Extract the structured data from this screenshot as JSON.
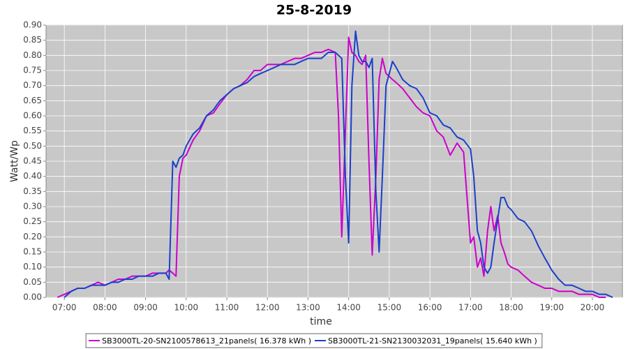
{
  "chart_data": {
    "type": "line",
    "title": "25-8-2019",
    "xlabel": "time",
    "ylabel": "Watt/Wp",
    "x": [
      6.83,
      7.0,
      7.17,
      7.33,
      7.5,
      7.67,
      7.83,
      8.0,
      8.17,
      8.33,
      8.5,
      8.67,
      8.83,
      9.0,
      9.17,
      9.33,
      9.5,
      9.58,
      9.67,
      9.75,
      9.83,
      9.92,
      10.0,
      10.17,
      10.33,
      10.5,
      10.67,
      10.83,
      11.0,
      11.17,
      11.33,
      11.5,
      11.67,
      11.83,
      12.0,
      12.17,
      12.33,
      12.5,
      12.67,
      12.83,
      13.0,
      13.17,
      13.33,
      13.5,
      13.67,
      13.75,
      13.83,
      13.92,
      14.0,
      14.08,
      14.17,
      14.25,
      14.33,
      14.42,
      14.5,
      14.58,
      14.67,
      14.75,
      14.83,
      14.92,
      15.0,
      15.08,
      15.17,
      15.33,
      15.5,
      15.67,
      15.83,
      16.0,
      16.17,
      16.33,
      16.5,
      16.67,
      16.83,
      17.0,
      17.08,
      17.17,
      17.25,
      17.33,
      17.42,
      17.5,
      17.58,
      17.67,
      17.75,
      17.83,
      17.92,
      18.0,
      18.17,
      18.33,
      18.5,
      18.67,
      18.83,
      19.0,
      19.17,
      19.33,
      19.5,
      19.67,
      19.83,
      20.0,
      20.17,
      20.33,
      20.5
    ],
    "series": [
      {
        "name": "SB3000TL-20-SN2100578613_21panels( 16.378 kWh )",
        "color": "#cc00cc",
        "values": [
          0.0,
          0.01,
          0.02,
          0.03,
          0.03,
          0.04,
          0.05,
          0.04,
          0.05,
          0.06,
          0.06,
          0.07,
          0.07,
          0.07,
          0.08,
          0.08,
          0.08,
          0.09,
          0.08,
          0.07,
          0.4,
          0.46,
          0.47,
          0.52,
          0.55,
          0.6,
          0.61,
          0.64,
          0.67,
          0.69,
          0.7,
          0.72,
          0.75,
          0.75,
          0.77,
          0.77,
          0.77,
          0.78,
          0.79,
          0.79,
          0.8,
          0.81,
          0.81,
          0.82,
          0.81,
          0.6,
          0.2,
          0.55,
          0.86,
          0.81,
          0.8,
          0.78,
          0.77,
          0.8,
          0.45,
          0.14,
          0.4,
          0.72,
          0.79,
          0.74,
          0.73,
          0.72,
          0.71,
          0.69,
          0.66,
          0.63,
          0.61,
          0.6,
          0.55,
          0.53,
          0.47,
          0.51,
          0.48,
          0.18,
          0.2,
          0.1,
          0.13,
          0.07,
          0.22,
          0.3,
          0.22,
          0.27,
          0.18,
          0.15,
          0.11,
          0.1,
          0.09,
          0.07,
          0.05,
          0.04,
          0.03,
          0.03,
          0.02,
          0.02,
          0.02,
          0.01,
          0.01,
          0.01,
          0.0,
          0.0,
          null
        ]
      },
      {
        "name": "SB3000TL-21-SN2130032031_19panels( 15.640 kWh )",
        "color": "#1a3fcc",
        "values": [
          null,
          0.0,
          0.02,
          0.03,
          0.03,
          0.04,
          0.04,
          0.04,
          0.05,
          0.05,
          0.06,
          0.06,
          0.07,
          0.07,
          0.07,
          0.08,
          0.08,
          0.06,
          0.45,
          0.43,
          0.46,
          0.47,
          0.5,
          0.54,
          0.56,
          0.6,
          0.62,
          0.65,
          0.67,
          0.69,
          0.7,
          0.71,
          0.73,
          0.74,
          0.75,
          0.76,
          0.77,
          0.77,
          0.77,
          0.78,
          0.79,
          0.79,
          0.79,
          0.81,
          0.81,
          0.8,
          0.79,
          0.4,
          0.18,
          0.7,
          0.88,
          0.8,
          0.78,
          0.78,
          0.76,
          0.79,
          0.35,
          0.15,
          0.4,
          0.7,
          0.74,
          0.78,
          0.76,
          0.72,
          0.7,
          0.69,
          0.66,
          0.61,
          0.6,
          0.57,
          0.56,
          0.53,
          0.52,
          0.49,
          0.4,
          0.22,
          0.18,
          0.1,
          0.08,
          0.1,
          0.18,
          0.26,
          0.33,
          0.33,
          0.3,
          0.29,
          0.26,
          0.25,
          0.22,
          0.17,
          0.13,
          0.09,
          0.06,
          0.04,
          0.04,
          0.03,
          0.02,
          0.02,
          0.01,
          0.01,
          0.0
        ]
      }
    ],
    "xlim": [
      6.55,
      20.74
    ],
    "xticks": [
      {
        "value": 7,
        "label": "07:00"
      },
      {
        "value": 8,
        "label": "08:00"
      },
      {
        "value": 9,
        "label": "09:00"
      },
      {
        "value": 10,
        "label": "10:00"
      },
      {
        "value": 11,
        "label": "11:00"
      },
      {
        "value": 12,
        "label": "12:00"
      },
      {
        "value": 13,
        "label": "13:00"
      },
      {
        "value": 14,
        "label": "14:00"
      },
      {
        "value": 15,
        "label": "15:00"
      },
      {
        "value": 16,
        "label": "16:00"
      },
      {
        "value": 17,
        "label": "17:00"
      },
      {
        "value": 18,
        "label": "18:00"
      },
      {
        "value": 19,
        "label": "19:00"
      },
      {
        "value": 20,
        "label": "20:00"
      }
    ],
    "ylim": [
      0,
      0.9
    ],
    "yticks": [
      {
        "value": 0,
        "label": "0.00"
      },
      {
        "value": 0.05,
        "label": "0.05"
      },
      {
        "value": 0.1,
        "label": "0.10"
      },
      {
        "value": 0.15,
        "label": "0.15"
      },
      {
        "value": 0.2,
        "label": "0.20"
      },
      {
        "value": 0.25,
        "label": "0.25"
      },
      {
        "value": 0.3,
        "label": "0.30"
      },
      {
        "value": 0.35,
        "label": "0.35"
      },
      {
        "value": 0.4,
        "label": "0.40"
      },
      {
        "value": 0.45,
        "label": "0.45"
      },
      {
        "value": 0.5,
        "label": "0.50"
      },
      {
        "value": 0.55,
        "label": "0.55"
      },
      {
        "value": 0.6,
        "label": "0.60"
      },
      {
        "value": 0.65,
        "label": "0.65"
      },
      {
        "value": 0.7,
        "label": "0.70"
      },
      {
        "value": 0.75,
        "label": "0.75"
      },
      {
        "value": 0.8,
        "label": "0.80"
      },
      {
        "value": 0.85,
        "label": "0.85"
      },
      {
        "value": 0.9,
        "label": "0.90"
      }
    ],
    "grid": true
  }
}
